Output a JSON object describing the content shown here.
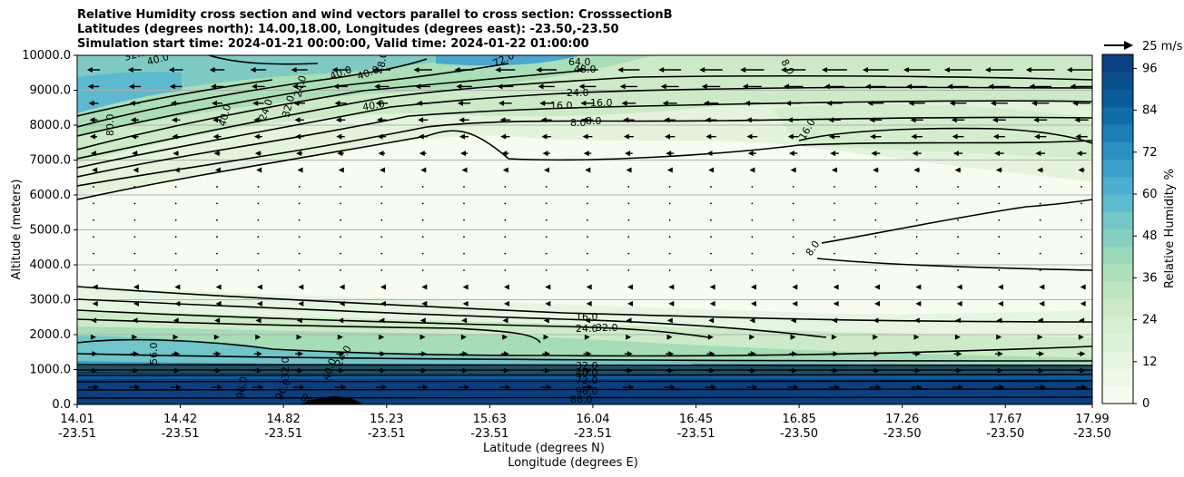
{
  "chart_data": {
    "type": "contour",
    "title_lines": [
      "Relative Humidity cross section and wind vectors parallel to cross section: CrosssectionB",
      "Latitudes (degrees north): 14.00,18.00, Longitudes (degrees east): -23.50,-23.50",
      "Simulation start time: 2024-01-21 00:00:00, Valid time: 2024-01-22 01:00:00"
    ],
    "xlabel_lat": "Latitude (degrees N)",
    "xlabel_lon": "Longitude (degrees E)",
    "ylabel": "Altitude (meters)",
    "x_ticks_lat": [
      "14.01",
      "14.42",
      "14.82",
      "15.23",
      "15.63",
      "16.04",
      "16.45",
      "16.85",
      "17.26",
      "17.67",
      "17.99"
    ],
    "x_ticks_lon": [
      "-23.51",
      "-23.51",
      "-23.51",
      "-23.51",
      "-23.51",
      "-23.51",
      "-23.51",
      "-23.50",
      "-23.50",
      "-23.50",
      "-23.50"
    ],
    "y_ticks": [
      "0.0",
      "1000.0",
      "2000.0",
      "3000.0",
      "4000.0",
      "5000.0",
      "6000.0",
      "7000.0",
      "8000.0",
      "9000.0",
      "10000.0"
    ],
    "ylim": [
      0,
      10000
    ],
    "colorbar": {
      "label": "Relative Humidity %",
      "ticks": [
        "0",
        "12",
        "24",
        "36",
        "48",
        "60",
        "72",
        "84",
        "96"
      ],
      "range": [
        0,
        100
      ],
      "colors": [
        "#f7fcf0",
        "#eef8e8",
        "#e6f5e1",
        "#def2d9",
        "#d7efd1",
        "#ccebc5",
        "#bde5be",
        "#addfb8",
        "#9bd8bb",
        "#87d0c0",
        "#72c7c7",
        "#5dbcce",
        "#4baed1",
        "#3a9fcb",
        "#2a8fc1",
        "#1c7eb7",
        "#106daa",
        "#0a5c9b",
        "#08508c",
        "#084081"
      ]
    },
    "quiver_key": "25 m/s",
    "contour_labels": [
      "32.0",
      "40.0",
      "48.0",
      "72.0",
      "64.0",
      "24.0",
      "16.0",
      "8.0",
      "80.0",
      "56.0",
      "96.0",
      "88.0"
    ],
    "rh_profile": [
      {
        "alt": 0,
        "rh": 98
      },
      {
        "alt": 500,
        "rh": 95
      },
      {
        "alt": 900,
        "rh": 80
      },
      {
        "alt": 1300,
        "rh": 55
      },
      {
        "alt": 2000,
        "rh": 28
      },
      {
        "alt": 3000,
        "rh": 10
      },
      {
        "alt": 5000,
        "rh": 4
      },
      {
        "alt": 7000,
        "rh": 8
      },
      {
        "alt": 8000,
        "rh": 16
      },
      {
        "alt": 9000,
        "rh": 24
      },
      {
        "alt": 10000,
        "rh": 48
      }
    ]
  }
}
